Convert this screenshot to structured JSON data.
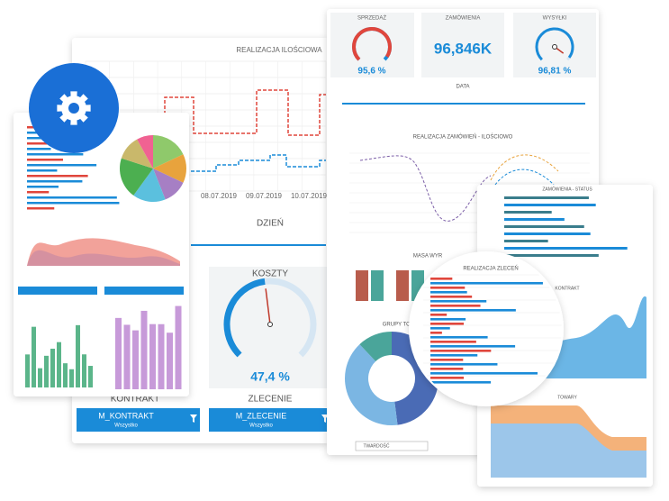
{
  "back_panel": {
    "title": "REALIZACJA ILOŚCIOWA",
    "dates": [
      "08.07.2019",
      "09.07.2019",
      "10.07.2019"
    ],
    "axis_label": "DZIEŃ",
    "koszty": {
      "label": "KOSZTY",
      "value": 47.4,
      "value_label": "47,4 %"
    },
    "zlecenie_label": "ZLECENIE",
    "kontrakt_label": "KONTRAKT",
    "filters": [
      {
        "title": "M_KONTRAKT",
        "subtitle": "Wszystko"
      },
      {
        "title": "M_ZLECENIE",
        "subtitle": "Wszystko"
      }
    ]
  },
  "right_panel": {
    "kpis": [
      {
        "label": "SPRZEDAŻ",
        "value": 95.6,
        "value_label": "95,6 %"
      },
      {
        "label": "ZAMÓWIENIA",
        "value_label": "96,846K"
      },
      {
        "label": "WYSYŁKI",
        "value": 96.81,
        "value_label": "96,81 %"
      }
    ],
    "date_label": "DATA",
    "chart_title": "REALIZACJA ZAMÓWIEŃ - ILOŚCIOWO",
    "mass_title": "MASA WYR",
    "groups_title": "GRUPY TOWA",
    "dropdown": "TWARDOŚĆ"
  },
  "zoom": {
    "title": "REALIZACJA ZLECEŃ"
  },
  "side_panel": {
    "status_title": "ZAMÓWIENIA - STATUS",
    "contract_title": "KONTRAKT",
    "goods_title": "TOWARY"
  }
}
